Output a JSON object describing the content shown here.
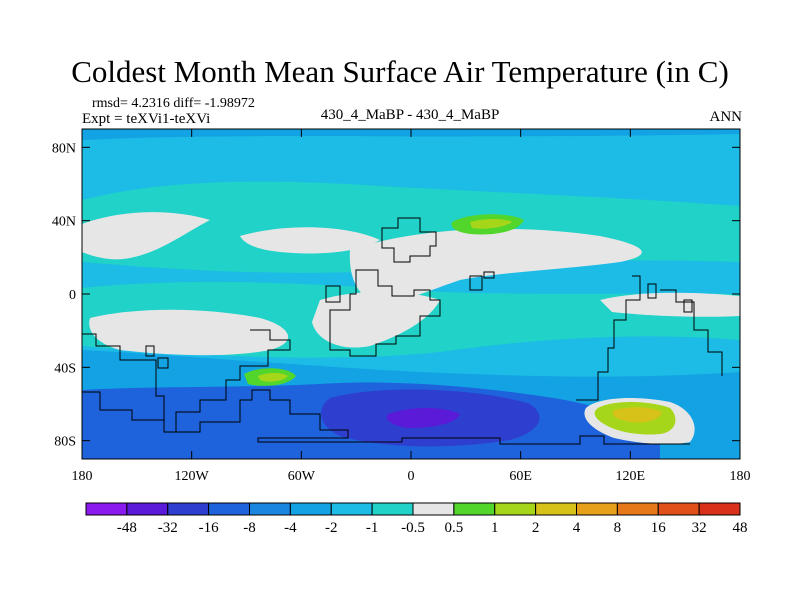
{
  "header": {
    "title": "Coldest Month Mean Surface Air Temperature (in C)",
    "stats": "rmsd= 4.2316 diff= -1.98972",
    "expt": "Expt = teXVi1-teXVi",
    "center_label": "430_4_MaBP - 430_4_MaBP",
    "right_label": "ANN"
  },
  "chart_data": {
    "type": "heatmap",
    "title": "Coldest Month Mean Surface Air Temperature (in C)",
    "subtitle": "430_4_MaBP - 430_4_MaBP",
    "xlabel": "",
    "ylabel": "",
    "xlim": [
      -180,
      180
    ],
    "ylim": [
      -90,
      90
    ],
    "x_ticks": [
      {
        "value": -180,
        "label": "180"
      },
      {
        "value": -120,
        "label": "120W"
      },
      {
        "value": -60,
        "label": "60W"
      },
      {
        "value": 0,
        "label": "0"
      },
      {
        "value": 60,
        "label": "60E"
      },
      {
        "value": 120,
        "label": "120E"
      },
      {
        "value": 180,
        "label": "180"
      }
    ],
    "y_ticks": [
      {
        "value": 80,
        "label": "80N"
      },
      {
        "value": 40,
        "label": "40N"
      },
      {
        "value": 0,
        "label": "0"
      },
      {
        "value": -40,
        "label": "40S"
      },
      {
        "value": -80,
        "label": "80S"
      }
    ],
    "colorbar": {
      "levels": [
        "-48",
        "-32",
        "-16",
        "-8",
        "-4",
        "-2",
        "-1",
        "-0.5",
        "0.5",
        "1",
        "2",
        "4",
        "8",
        "16",
        "32",
        "48"
      ],
      "colors": [
        "#8a1aee",
        "#5a1ad8",
        "#2e3fd0",
        "#1e62dc",
        "#1b86e0",
        "#13a2e4",
        "#1cbce6",
        "#20d2c8",
        "#e6e6e6",
        "#52d62c",
        "#a6d61a",
        "#d6c218",
        "#e6a01a",
        "#e6781a",
        "#e2501a",
        "#d8301a"
      ]
    },
    "regions": [
      {
        "name": "arctic-band",
        "level": "-2",
        "lon": [
          -180,
          180
        ],
        "lat": [
          50,
          90
        ]
      },
      {
        "name": "europe-asia-neutral",
        "level": "-0.5 to 0.5",
        "lon": [
          -60,
          90
        ],
        "lat": [
          0,
          40
        ]
      },
      {
        "name": "north-pacific-neutral",
        "level": "-0.5 to 0.5",
        "lon": [
          -175,
          -100
        ],
        "lat": [
          20,
          42
        ]
      },
      {
        "name": "central-asia-warm",
        "level": "1 to 2",
        "lon": [
          25,
          60
        ],
        "lat": [
          34,
          43
        ]
      },
      {
        "name": "south-atlantic-warm",
        "level": "1 to 2",
        "lon": [
          -80,
          -60
        ],
        "lat": [
          -42,
          -50
        ]
      },
      {
        "name": "antarctic-cold-core",
        "level": "-48 to -32",
        "lon": [
          -20,
          35
        ],
        "lat": [
          -60,
          -85
        ]
      },
      {
        "name": "southern-ocean-cold",
        "level": "-16 to -8",
        "lon": [
          -165,
          60
        ],
        "lat": [
          -45,
          -90
        ]
      },
      {
        "name": "australia-warm",
        "level": "2 to 8",
        "lon": [
          100,
          150
        ],
        "lat": [
          -58,
          -80
        ]
      }
    ]
  }
}
